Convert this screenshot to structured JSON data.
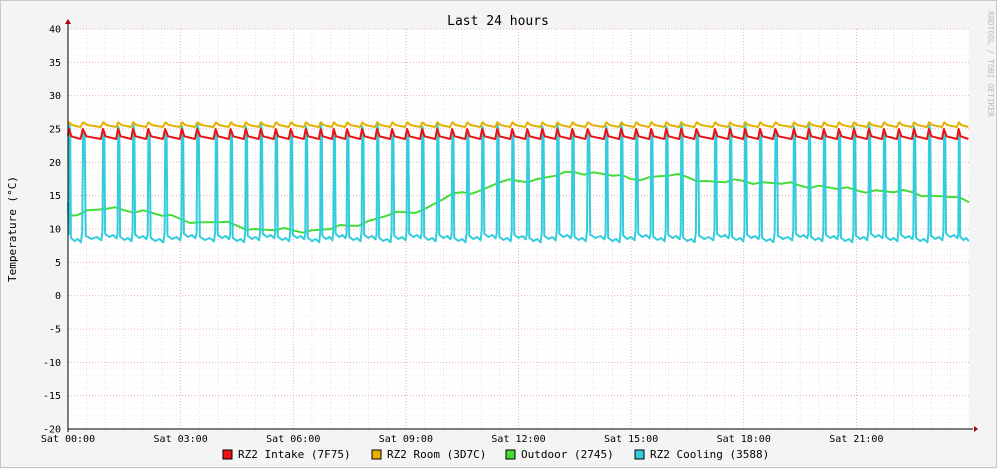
{
  "chart_data": {
    "type": "line",
    "title": "Last 24 hours",
    "ylabel": "Temperature (°C)",
    "watermark": "RRDTOOL / TOBI OETIKER",
    "ylim": [
      -20,
      40
    ],
    "y_ticks": [
      -20,
      -15,
      -10,
      -5,
      0,
      5,
      10,
      15,
      20,
      25,
      30,
      35,
      40
    ],
    "xlim_hours": [
      0,
      24
    ],
    "x_ticks": [
      {
        "hour": 0,
        "label": "Sat 00:00"
      },
      {
        "hour": 3,
        "label": "Sat 03:00"
      },
      {
        "hour": 6,
        "label": "Sat 06:00"
      },
      {
        "hour": 9,
        "label": "Sat 09:00"
      },
      {
        "hour": 12,
        "label": "Sat 12:00"
      },
      {
        "hour": 15,
        "label": "Sat 15:00"
      },
      {
        "hour": 18,
        "label": "Sat 18:00"
      },
      {
        "hour": 21,
        "label": "Sat 21:00"
      }
    ],
    "grid": true,
    "legend_position": "bottom",
    "series": [
      {
        "name": "RZ2 Intake (7F75)",
        "color": "#EE1111",
        "kind": "intake",
        "cycle_hours": [
          0.0,
          0.35,
          0.9,
          1.3,
          1.7,
          2.1,
          2.55,
          3.0,
          3.4,
          3.9,
          4.3,
          4.7,
          5.1,
          5.5,
          5.9,
          6.3,
          6.7,
          7.05,
          7.4,
          7.8,
          8.2,
          8.6,
          9.0,
          9.4,
          9.8,
          10.2,
          10.6,
          11.0,
          11.4,
          11.8,
          12.2,
          12.6,
          13.0,
          13.4,
          13.8,
          14.3,
          14.7,
          15.1,
          15.5,
          15.9,
          16.3,
          16.7,
          17.2,
          17.6,
          18.0,
          18.4,
          18.8,
          19.3,
          19.7,
          20.1,
          20.5,
          20.9,
          21.3,
          21.7,
          22.1,
          22.5,
          22.9,
          23.3,
          23.7
        ],
        "peak": 25.0,
        "low": 23.5
      },
      {
        "name": "RZ2 Room (3D7C)",
        "color": "#E6B000",
        "kind": "room",
        "peak": 26.0,
        "low": 25.3
      },
      {
        "name": "Outdoor (2745)",
        "color": "#44DD33",
        "kind": "outdoor",
        "x": [
          0.0,
          0.5,
          1.0,
          1.5,
          2.0,
          2.5,
          3.0,
          3.5,
          4.0,
          4.5,
          5.0,
          5.5,
          6.0,
          6.5,
          7.0,
          7.5,
          8.0,
          8.5,
          9.0,
          9.5,
          10.0,
          10.5,
          11.0,
          11.5,
          12.0,
          12.5,
          13.0,
          13.5,
          14.0,
          14.5,
          15.0,
          15.5,
          16.0,
          16.5,
          17.0,
          17.5,
          18.0,
          18.5,
          19.0,
          19.5,
          20.0,
          20.5,
          21.0,
          21.5,
          22.0,
          22.5,
          23.0,
          23.5,
          24.0
        ],
        "values": [
          12.0,
          12.8,
          13.0,
          12.8,
          12.8,
          12.0,
          11.5,
          11.0,
          11.0,
          10.5,
          10.0,
          9.8,
          9.8,
          9.8,
          10.0,
          10.5,
          11.2,
          12.0,
          12.5,
          13.0,
          14.5,
          15.5,
          15.8,
          17.0,
          17.2,
          17.5,
          18.0,
          18.5,
          18.5,
          18.0,
          17.5,
          17.8,
          18.0,
          17.8,
          17.2,
          17.0,
          17.2,
          17.0,
          16.8,
          16.5,
          16.5,
          16.0,
          15.8,
          15.8,
          15.5,
          15.5,
          15.0,
          14.8,
          14.0
        ]
      },
      {
        "name": "RZ2 Cooling (3588)",
        "color": "#33CCDD",
        "kind": "cooling",
        "peak": 26.0,
        "low": 8.5
      }
    ]
  }
}
